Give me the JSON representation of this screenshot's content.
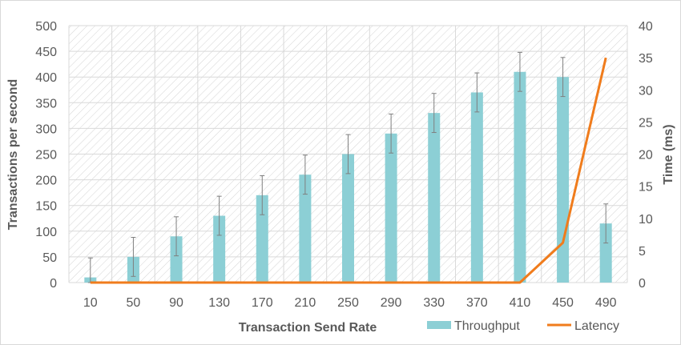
{
  "chart_data": {
    "type": "bar",
    "categories": [
      "10",
      "50",
      "90",
      "130",
      "170",
      "210",
      "250",
      "290",
      "330",
      "370",
      "410",
      "450",
      "490"
    ],
    "xlabel": "Transaction Send Rate",
    "ylabel": "Transactions per second",
    "y2label": "Time (ms)",
    "ylim": [
      0,
      500
    ],
    "y2lim": [
      0,
      40
    ],
    "yticks": [
      "0",
      "50",
      "100",
      "150",
      "200",
      "250",
      "300",
      "350",
      "400",
      "450",
      "500"
    ],
    "y2ticks": [
      "0",
      "5",
      "10",
      "15",
      "20",
      "25",
      "30",
      "35",
      "40"
    ],
    "grid": true,
    "legend_position": "bottom-right",
    "series": [
      {
        "name": "Throughput",
        "type": "bar",
        "axis": "left",
        "color": "#8ccfd5",
        "values": [
          10,
          50,
          90,
          130,
          170,
          210,
          250,
          290,
          330,
          370,
          410,
          400,
          115
        ],
        "error": [
          38,
          38,
          38,
          38,
          38,
          38,
          38,
          38,
          38,
          38,
          38,
          38,
          38
        ]
      },
      {
        "name": "Latency",
        "type": "line",
        "axis": "right",
        "color": "#f07c1c",
        "values": [
          0,
          0,
          0,
          0,
          0,
          0,
          0,
          0,
          0,
          0,
          0,
          6.2,
          35
        ]
      }
    ]
  }
}
